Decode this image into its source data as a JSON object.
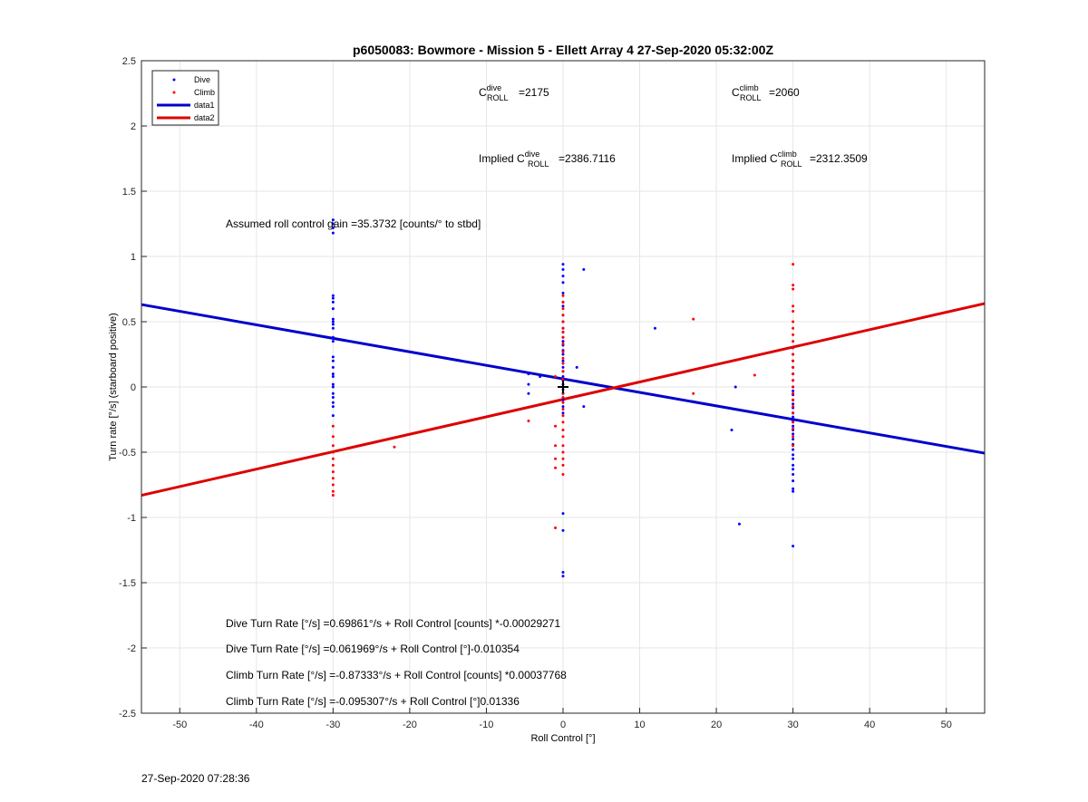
{
  "chart_data": {
    "type": "scatter",
    "title": "p6050083: Bowmore - Mission 5 - Ellett Array 4 27-Sep-2020 05:32:00Z",
    "xlabel": "Roll Control [°]",
    "ylabel": "Turn rate [°/s] (starboard positive)",
    "xlim": [
      -55,
      55
    ],
    "ylim": [
      -2.5,
      2.5
    ],
    "xticks": [
      -50,
      -40,
      -30,
      -20,
      -10,
      0,
      10,
      20,
      30,
      40,
      50
    ],
    "yticks": [
      -2.5,
      -2,
      -1.5,
      -1,
      -0.5,
      0,
      0.5,
      1,
      1.5,
      2,
      2.5
    ],
    "grid": true,
    "legend_position": "top-left",
    "series": [
      {
        "name": "Dive",
        "kind": "points",
        "color": "#0000ff",
        "points": [
          [
            -30,
            1.28
          ],
          [
            -30,
            1.25
          ],
          [
            -30,
            1.22
          ],
          [
            -30,
            1.18
          ],
          [
            -30,
            0.7
          ],
          [
            -30,
            0.68
          ],
          [
            -30,
            0.65
          ],
          [
            -30,
            0.6
          ],
          [
            -30,
            0.52
          ],
          [
            -30,
            0.5
          ],
          [
            -30,
            0.48
          ],
          [
            -30,
            0.45
          ],
          [
            -30,
            0.38
          ],
          [
            -30,
            0.35
          ],
          [
            -30,
            0.23
          ],
          [
            -30,
            0.2
          ],
          [
            -30,
            0.15
          ],
          [
            -30,
            0.1
          ],
          [
            -30,
            0.08
          ],
          [
            -30,
            0.02
          ],
          [
            -30,
            0.0
          ],
          [
            -30,
            -0.05
          ],
          [
            -30,
            -0.08
          ],
          [
            -30,
            -0.12
          ],
          [
            -30,
            -0.15
          ],
          [
            -30,
            -0.22
          ],
          [
            -4.5,
            0.1
          ],
          [
            -4.5,
            0.02
          ],
          [
            -4.5,
            -0.05
          ],
          [
            -3,
            0.08
          ],
          [
            0,
            0.94
          ],
          [
            0,
            0.9
          ],
          [
            0,
            0.85
          ],
          [
            0,
            0.8
          ],
          [
            0,
            0.72
          ],
          [
            0,
            0.65
          ],
          [
            0,
            0.62
          ],
          [
            0,
            0.55
          ],
          [
            0,
            0.5
          ],
          [
            0,
            0.45
          ],
          [
            0,
            0.42
          ],
          [
            0,
            0.38
          ],
          [
            0,
            0.35
          ],
          [
            0,
            0.32
          ],
          [
            0,
            0.28
          ],
          [
            0,
            0.25
          ],
          [
            0,
            0.2
          ],
          [
            0,
            0.15
          ],
          [
            0,
            0.12
          ],
          [
            0,
            0.08
          ],
          [
            0,
            0.05
          ],
          [
            0,
            0.02
          ],
          [
            0,
            -0.02
          ],
          [
            0,
            -0.05
          ],
          [
            0,
            -0.1
          ],
          [
            0,
            -0.15
          ],
          [
            0,
            -0.2
          ],
          [
            0,
            -0.97
          ],
          [
            0,
            -1.1
          ],
          [
            0,
            -1.42
          ],
          [
            0,
            -1.45
          ],
          [
            1.8,
            0.15
          ],
          [
            2.7,
            0.9
          ],
          [
            2.7,
            -0.15
          ],
          [
            12,
            0.45
          ],
          [
            22,
            -0.33
          ],
          [
            22.5,
            0.0
          ],
          [
            23,
            -1.05
          ],
          [
            30,
            0.3
          ],
          [
            30,
            0.25
          ],
          [
            30,
            0.2
          ],
          [
            30,
            0.15
          ],
          [
            30,
            0.1
          ],
          [
            30,
            0.05
          ],
          [
            30,
            0.0
          ],
          [
            30,
            -0.03
          ],
          [
            30,
            -0.06
          ],
          [
            30,
            -0.1
          ],
          [
            30,
            -0.13
          ],
          [
            30,
            -0.16
          ],
          [
            30,
            -0.2
          ],
          [
            30,
            -0.23
          ],
          [
            30,
            -0.26
          ],
          [
            30,
            -0.3
          ],
          [
            30,
            -0.33
          ],
          [
            30,
            -0.36
          ],
          [
            30,
            -0.4
          ],
          [
            30,
            -0.44
          ],
          [
            30,
            -0.48
          ],
          [
            30,
            -0.52
          ],
          [
            30,
            -0.55
          ],
          [
            30,
            -0.6
          ],
          [
            30,
            -0.63
          ],
          [
            30,
            -0.67
          ],
          [
            30,
            -0.72
          ],
          [
            30,
            -0.78
          ],
          [
            30,
            -0.8
          ],
          [
            30,
            -1.22
          ]
        ]
      },
      {
        "name": "Climb",
        "kind": "points",
        "color": "#ff0000",
        "points": [
          [
            -30,
            -0.3
          ],
          [
            -30,
            -0.38
          ],
          [
            -30,
            -0.45
          ],
          [
            -30,
            -0.5
          ],
          [
            -30,
            -0.55
          ],
          [
            -30,
            -0.6
          ],
          [
            -30,
            -0.65
          ],
          [
            -30,
            -0.7
          ],
          [
            -30,
            -0.75
          ],
          [
            -30,
            -0.8
          ],
          [
            -30,
            -0.83
          ],
          [
            -22,
            -0.46
          ],
          [
            -4.5,
            -0.26
          ],
          [
            -1,
            0.08
          ],
          [
            -1,
            -0.3
          ],
          [
            -1,
            -0.45
          ],
          [
            -1,
            -0.55
          ],
          [
            -1,
            -0.62
          ],
          [
            -1,
            -1.08
          ],
          [
            0,
            0.7
          ],
          [
            0,
            0.65
          ],
          [
            0,
            0.6
          ],
          [
            0,
            0.55
          ],
          [
            0,
            0.5
          ],
          [
            0,
            0.45
          ],
          [
            0,
            0.42
          ],
          [
            0,
            0.38
          ],
          [
            0,
            0.33
          ],
          [
            0,
            0.27
          ],
          [
            0,
            0.22
          ],
          [
            0,
            0.18
          ],
          [
            0,
            0.12
          ],
          [
            0,
            0.06
          ],
          [
            0,
            0.0
          ],
          [
            0,
            -0.05
          ],
          [
            0,
            -0.08
          ],
          [
            0,
            -0.12
          ],
          [
            0,
            -0.17
          ],
          [
            0,
            -0.22
          ],
          [
            0,
            -0.27
          ],
          [
            0,
            -0.33
          ],
          [
            0,
            -0.38
          ],
          [
            0,
            -0.45
          ],
          [
            0,
            -0.5
          ],
          [
            0,
            -0.55
          ],
          [
            0,
            -0.6
          ],
          [
            0,
            -0.67
          ],
          [
            17,
            0.52
          ],
          [
            17,
            -0.05
          ],
          [
            25,
            0.09
          ],
          [
            30,
            0.94
          ],
          [
            30,
            0.78
          ],
          [
            30,
            0.75
          ],
          [
            30,
            0.62
          ],
          [
            30,
            0.58
          ],
          [
            30,
            0.5
          ],
          [
            30,
            0.45
          ],
          [
            30,
            0.4
          ],
          [
            30,
            0.35
          ],
          [
            30,
            0.3
          ],
          [
            30,
            0.25
          ],
          [
            30,
            0.2
          ],
          [
            30,
            0.15
          ],
          [
            30,
            0.1
          ],
          [
            30,
            0.05
          ],
          [
            30,
            0.0
          ],
          [
            30,
            -0.05
          ],
          [
            30,
            -0.1
          ],
          [
            30,
            -0.15
          ],
          [
            30,
            -0.2
          ],
          [
            30,
            -0.27
          ],
          [
            30,
            -0.32
          ],
          [
            30,
            -0.38
          ],
          [
            30,
            -0.45
          ]
        ]
      },
      {
        "name": "data1",
        "kind": "line",
        "color": "#0000cc",
        "intercept": 0.061969,
        "slope": -0.010354
      },
      {
        "name": "data2",
        "kind": "line",
        "color": "#dd0000",
        "intercept": -0.095307,
        "slope": 0.01336
      }
    ],
    "marker": [
      0,
      0
    ],
    "annotations": {
      "c_dive": {
        "base": "C",
        "sup": "dive",
        "sub": "ROLL",
        "value": "=2175"
      },
      "c_climb": {
        "base": "C",
        "sup": "climb",
        "sub": "ROLL",
        "value": "=2060"
      },
      "implied_dive": {
        "prefix": "Implied ",
        "base": "C",
        "sup": "dive",
        "sub": "ROLL",
        "value": "=2386.7116"
      },
      "implied_climb": {
        "prefix": "Implied ",
        "base": "C",
        "sup": "climb",
        "sub": "ROLL",
        "value": "=2312.3509"
      },
      "gain": "Assumed roll control gain =35.3732 [counts/° to stbd]",
      "eq1": "Dive Turn Rate [°/s] =0.69861°/s + Roll Control [counts] *-0.00029271",
      "eq2": "Dive Turn Rate [°/s] =0.061969°/s + Roll Control [°]-0.010354",
      "eq3": "Climb Turn Rate [°/s] =-0.87333°/s + Roll Control [counts] *0.00037768",
      "eq4": "Climb Turn Rate [°/s] =-0.095307°/s + Roll Control [°]0.01336"
    }
  },
  "footer": {
    "timestamp": "27-Sep-2020 07:28:36"
  }
}
